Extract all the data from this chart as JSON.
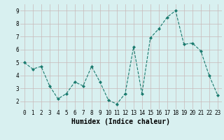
{
  "x": [
    0,
    1,
    2,
    3,
    4,
    5,
    6,
    7,
    8,
    9,
    10,
    11,
    12,
    13,
    14,
    15,
    16,
    17,
    18,
    19,
    20,
    21,
    22,
    23
  ],
  "y": [
    5.0,
    4.5,
    4.7,
    3.2,
    2.2,
    2.6,
    3.5,
    3.2,
    4.7,
    3.5,
    2.1,
    1.8,
    2.6,
    6.2,
    2.6,
    6.9,
    7.6,
    8.5,
    9.0,
    6.4,
    6.5,
    5.9,
    4.0,
    2.5
  ],
  "line_color": "#1a7a6e",
  "marker": "D",
  "marker_size": 2.0,
  "bg_color": "#d8f0f0",
  "grid_color": "#c8b8b8",
  "xlabel": "Humidex (Indice chaleur)",
  "xlim": [
    -0.5,
    23.5
  ],
  "ylim": [
    1.4,
    9.5
  ],
  "yticks": [
    2,
    3,
    4,
    5,
    6,
    7,
    8,
    9
  ],
  "xticks": [
    0,
    1,
    2,
    3,
    4,
    5,
    6,
    7,
    8,
    9,
    10,
    11,
    12,
    13,
    14,
    15,
    16,
    17,
    18,
    19,
    20,
    21,
    22,
    23
  ],
  "axis_fontsize": 6.5,
  "tick_fontsize": 5.5,
  "xlabel_fontsize": 7.0
}
